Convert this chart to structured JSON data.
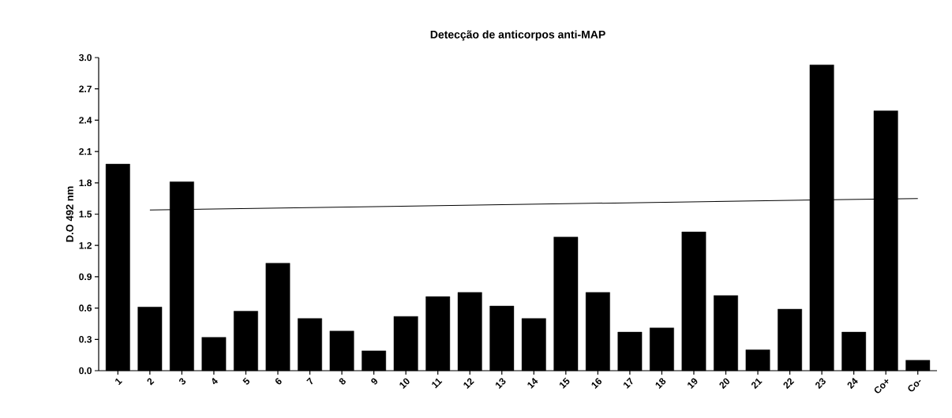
{
  "chart_data": {
    "type": "bar",
    "title": "Detecção de anticorpos anti-MAP",
    "ylabel": "D.O 492 nm",
    "categories": [
      "1",
      "2",
      "3",
      "4",
      "5",
      "6",
      "7",
      "8",
      "9",
      "10",
      "11",
      "12",
      "13",
      "14",
      "15",
      "16",
      "17",
      "18",
      "19",
      "20",
      "21",
      "22",
      "23",
      "24",
      "Co+",
      "Co-"
    ],
    "series": [
      {
        "color": "#000000",
        "values": [
          1.98,
          0.61,
          1.81,
          0.32,
          0.57,
          1.03,
          0.5,
          0.38,
          0.19,
          0.52,
          0.71,
          0.75,
          0.62,
          0.5,
          1.28,
          0.75,
          0.37,
          0.41,
          1.33,
          0.72,
          0.2,
          0.59,
          2.93,
          0.37,
          2.49,
          0.1
        ]
      },
      {
        "type": "line",
        "color": "#000000",
        "x": [
          "2",
          "Co-"
        ],
        "values": [
          1.54,
          1.65
        ]
      }
    ],
    "ylim": [
      0,
      3.0
    ],
    "yticks": [
      {
        "value": 0,
        "label": "0.0"
      },
      0.3,
      0.6,
      0.9,
      1.2,
      1.5,
      1.8,
      2.1,
      2.4,
      2.7,
      {
        "value": 3.0,
        "label": "3.0"
      }
    ],
    "grid": false
  }
}
